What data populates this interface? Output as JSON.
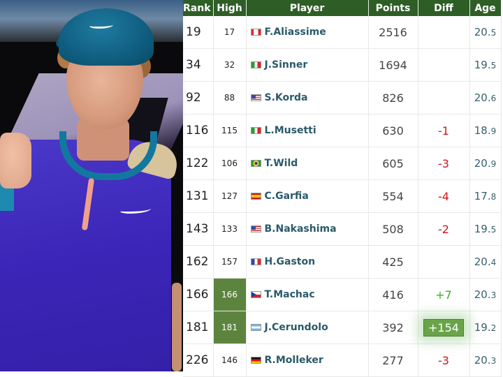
{
  "photo": {
    "subject": "tennis player in blue cap and purple shirt, fist pump",
    "colors": {
      "cap": "#0f5e80",
      "shirt": "#3b25b8",
      "collar": "#12789e",
      "zip": "#f0a08a"
    }
  },
  "table": {
    "header_color": "#2e5e26",
    "highlight_color": "#5d843f",
    "columns": [
      "Rank",
      "High",
      "Player",
      "Points",
      "Diff",
      "Age"
    ],
    "rows": [
      {
        "rank": "19",
        "high": "17",
        "high_highlight": false,
        "flag": "ca",
        "flag_icon": "canada-flag-icon",
        "player": "F.Aliassime",
        "points": "2516",
        "diff": "",
        "diff_type": "",
        "age_int": "20.",
        "age_dec": "5"
      },
      {
        "rank": "34",
        "high": "32",
        "high_highlight": false,
        "flag": "it",
        "flag_icon": "italy-flag-icon",
        "player": "J.Sinner",
        "points": "1694",
        "diff": "",
        "diff_type": "",
        "age_int": "19.",
        "age_dec": "5"
      },
      {
        "rank": "92",
        "high": "88",
        "high_highlight": false,
        "flag": "us",
        "flag_icon": "usa-flag-icon",
        "player": "S.Korda",
        "points": "826",
        "diff": "",
        "diff_type": "",
        "age_int": "20.",
        "age_dec": "6"
      },
      {
        "rank": "116",
        "high": "115",
        "high_highlight": false,
        "flag": "it",
        "flag_icon": "italy-flag-icon",
        "player": "L.Musetti",
        "points": "630",
        "diff": "-1",
        "diff_type": "neg",
        "age_int": "18.",
        "age_dec": "9"
      },
      {
        "rank": "122",
        "high": "106",
        "high_highlight": false,
        "flag": "br",
        "flag_icon": "brazil-flag-icon",
        "player": "T.Wild",
        "points": "605",
        "diff": "-3",
        "diff_type": "neg",
        "age_int": "20.",
        "age_dec": "9"
      },
      {
        "rank": "131",
        "high": "127",
        "high_highlight": false,
        "flag": "es",
        "flag_icon": "spain-flag-icon",
        "player": "C.Garfia",
        "points": "554",
        "diff": "-4",
        "diff_type": "neg",
        "age_int": "17.",
        "age_dec": "8"
      },
      {
        "rank": "143",
        "high": "133",
        "high_highlight": false,
        "flag": "us",
        "flag_icon": "usa-flag-icon",
        "player": "B.Nakashima",
        "points": "508",
        "diff": "-2",
        "diff_type": "neg",
        "age_int": "19.",
        "age_dec": "5"
      },
      {
        "rank": "162",
        "high": "157",
        "high_highlight": false,
        "flag": "fr",
        "flag_icon": "france-flag-icon",
        "player": "H.Gaston",
        "points": "425",
        "diff": "",
        "diff_type": "",
        "age_int": "20.",
        "age_dec": "4"
      },
      {
        "rank": "166",
        "high": "166",
        "high_highlight": true,
        "flag": "cz",
        "flag_icon": "czech-flag-icon",
        "player": "T.Machac",
        "points": "416",
        "diff": "+7",
        "diff_type": "pos",
        "age_int": "20.",
        "age_dec": "3"
      },
      {
        "rank": "181",
        "high": "181",
        "high_highlight": true,
        "flag": "ar",
        "flag_icon": "argentina-flag-icon",
        "player": "J.Cerundolo",
        "points": "392",
        "diff": "+154",
        "diff_type": "badge",
        "age_int": "19.",
        "age_dec": "2"
      },
      {
        "rank": "226",
        "high": "146",
        "high_highlight": false,
        "flag": "de",
        "flag_icon": "germany-flag-icon",
        "player": "R.Molleker",
        "points": "277",
        "diff": "-3",
        "diff_type": "neg",
        "age_int": "20.",
        "age_dec": "3"
      }
    ]
  }
}
